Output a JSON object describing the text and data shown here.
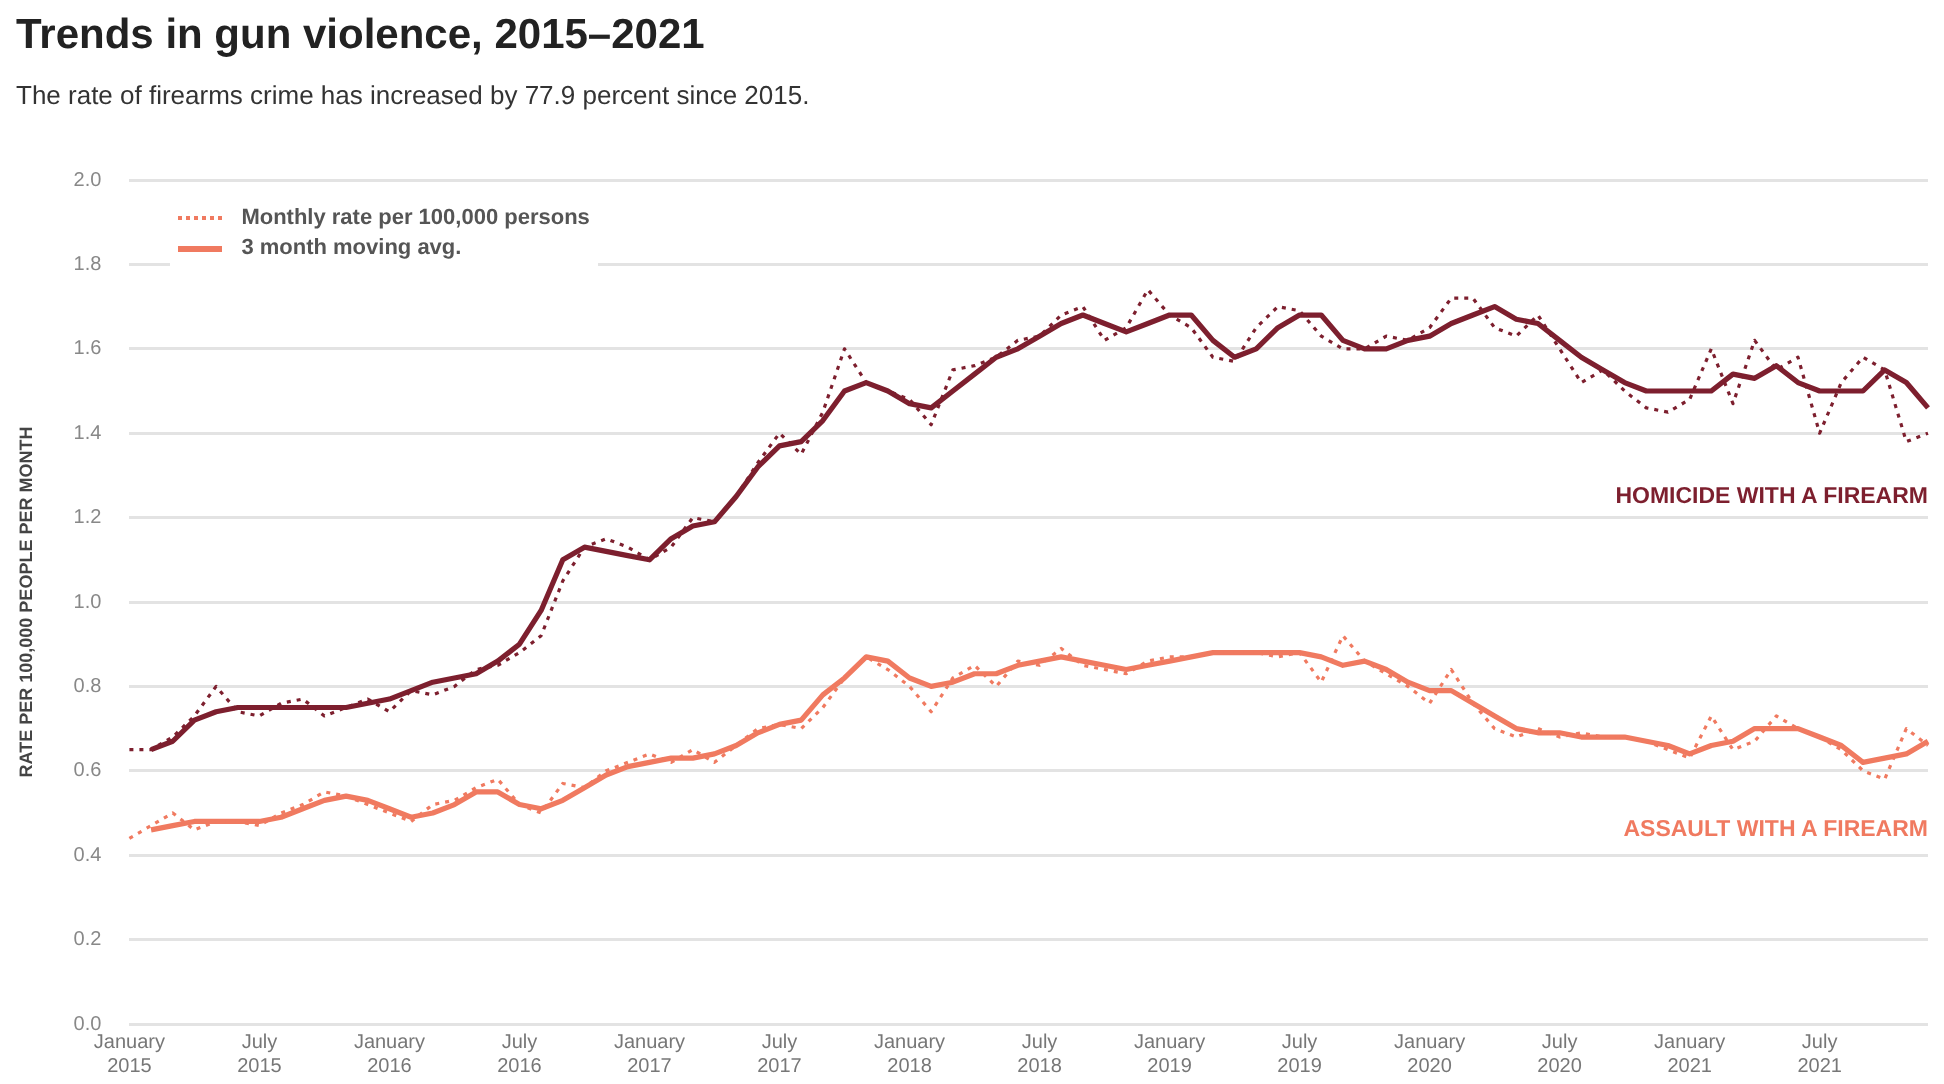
{
  "chart_data": {
    "type": "line",
    "title": "Trends in gun violence, 2015–2021",
    "subtitle": "The rate of firearms crime has increased by 77.9 percent since 2015.",
    "ylabel": "RATE PER 100,000 PEOPLE PER MONTH",
    "categories": [
      "January 2015",
      null,
      null,
      null,
      null,
      null,
      "July 2015",
      null,
      null,
      null,
      null,
      null,
      "January 2016",
      null,
      null,
      null,
      null,
      null,
      "July 2016",
      null,
      null,
      null,
      null,
      null,
      "January 2017",
      null,
      null,
      null,
      null,
      null,
      "July 2017",
      null,
      null,
      null,
      null,
      null,
      "January 2018",
      null,
      null,
      null,
      null,
      null,
      "July 2018",
      null,
      null,
      null,
      null,
      null,
      "January 2019",
      null,
      null,
      null,
      null,
      null,
      "July 2019",
      null,
      null,
      null,
      null,
      null,
      "January 2020",
      null,
      null,
      null,
      null,
      null,
      "July 2020",
      null,
      null,
      null,
      null,
      null,
      "January 2021",
      null,
      null,
      null,
      null,
      null,
      "July 2021",
      null,
      null,
      null,
      null,
      null
    ],
    "series": [
      {
        "color": "#7d1f2e",
        "line_style": "dotted",
        "values": [
          0.65,
          0.65,
          0.68,
          0.73,
          0.8,
          0.74,
          0.73,
          0.76,
          0.77,
          0.73,
          0.75,
          0.77,
          0.74,
          0.79,
          0.78,
          0.8,
          0.84,
          0.85,
          0.88,
          0.92,
          1.05,
          1.13,
          1.15,
          1.13,
          1.1,
          1.13,
          1.2,
          1.19,
          1.25,
          1.33,
          1.4,
          1.35,
          1.45,
          1.6,
          1.52,
          1.5,
          1.48,
          1.42,
          1.55,
          1.56,
          1.58,
          1.62,
          1.63,
          1.68,
          1.7,
          1.62,
          1.65,
          1.74,
          1.68,
          1.65,
          1.58,
          1.57,
          1.65,
          1.7,
          1.69,
          1.63,
          1.6,
          1.6,
          1.63,
          1.62,
          1.65,
          1.72,
          1.72,
          1.65,
          1.63,
          1.68,
          1.6,
          1.52,
          1.55,
          1.5,
          1.46,
          1.45,
          1.48,
          1.6,
          1.47,
          1.62,
          1.55,
          1.58,
          1.4,
          1.52,
          1.58,
          1.55,
          1.38,
          1.4
        ]
      },
      {
        "color": "#7d1f2e",
        "line_style": "solid",
        "values": [
          null,
          0.65,
          0.67,
          0.72,
          0.74,
          0.75,
          0.75,
          0.75,
          0.75,
          0.75,
          0.75,
          0.76,
          0.77,
          0.79,
          0.81,
          0.82,
          0.83,
          0.86,
          0.9,
          0.98,
          1.1,
          1.13,
          1.12,
          1.11,
          1.1,
          1.15,
          1.18,
          1.19,
          1.25,
          1.32,
          1.37,
          1.38,
          1.43,
          1.5,
          1.52,
          1.5,
          1.47,
          1.46,
          1.5,
          1.54,
          1.58,
          1.6,
          1.63,
          1.66,
          1.68,
          1.66,
          1.64,
          1.66,
          1.68,
          1.68,
          1.62,
          1.58,
          1.6,
          1.65,
          1.68,
          1.68,
          1.62,
          1.6,
          1.6,
          1.62,
          1.63,
          1.66,
          1.68,
          1.7,
          1.67,
          1.66,
          1.62,
          1.58,
          1.55,
          1.52,
          1.5,
          1.5,
          1.5,
          1.5,
          1.54,
          1.53,
          1.56,
          1.52,
          1.5,
          1.5,
          1.5,
          1.55,
          1.52,
          1.46
        ]
      },
      {
        "name": "Monthly rate per 100,000 persons",
        "color": "#f07a60",
        "line_style": "dotted",
        "values": [
          0.44,
          0.47,
          0.5,
          0.46,
          0.48,
          0.48,
          0.47,
          0.5,
          0.52,
          0.55,
          0.54,
          0.52,
          0.5,
          0.48,
          0.52,
          0.53,
          0.56,
          0.58,
          0.52,
          0.5,
          0.57,
          0.56,
          0.6,
          0.62,
          0.64,
          0.62,
          0.65,
          0.62,
          0.66,
          0.7,
          0.71,
          0.7,
          0.75,
          0.82,
          0.87,
          0.84,
          0.8,
          0.74,
          0.82,
          0.85,
          0.8,
          0.86,
          0.85,
          0.89,
          0.85,
          0.84,
          0.83,
          0.86,
          0.87,
          0.87,
          0.88,
          0.88,
          0.88,
          0.87,
          0.88,
          0.81,
          0.92,
          0.86,
          0.83,
          0.8,
          0.76,
          0.84,
          0.76,
          0.7,
          0.68,
          0.7,
          0.68,
          0.69,
          0.68,
          0.68,
          0.67,
          0.65,
          0.63,
          0.73,
          0.65,
          0.67,
          0.73,
          0.7,
          0.68,
          0.65,
          0.6,
          0.58,
          0.7,
          0.66
        ]
      },
      {
        "name": "3 month moving avg.",
        "color": "#f07a60",
        "line_style": "solid",
        "values": [
          null,
          0.46,
          0.47,
          0.48,
          0.48,
          0.48,
          0.48,
          0.49,
          0.51,
          0.53,
          0.54,
          0.53,
          0.51,
          0.49,
          0.5,
          0.52,
          0.55,
          0.55,
          0.52,
          0.51,
          0.53,
          0.56,
          0.59,
          0.61,
          0.62,
          0.63,
          0.63,
          0.64,
          0.66,
          0.69,
          0.71,
          0.72,
          0.78,
          0.82,
          0.87,
          0.86,
          0.82,
          0.8,
          0.81,
          0.83,
          0.83,
          0.85,
          0.86,
          0.87,
          0.86,
          0.85,
          0.84,
          0.85,
          0.86,
          0.87,
          0.88,
          0.88,
          0.88,
          0.88,
          0.88,
          0.87,
          0.85,
          0.86,
          0.84,
          0.81,
          0.79,
          0.79,
          0.76,
          0.73,
          0.7,
          0.69,
          0.69,
          0.68,
          0.68,
          0.68,
          0.67,
          0.66,
          0.64,
          0.66,
          0.67,
          0.7,
          0.7,
          0.7,
          0.68,
          0.66,
          0.62,
          0.63,
          0.64,
          0.67
        ]
      }
    ],
    "annotations": [
      "HOMICIDE WITH A FIREARM",
      "ASSAULT WITH A FIREARM"
    ],
    "ylim": [
      0,
      2
    ],
    "yticks": [
      {
        "value": 0,
        "label": "0.0"
      },
      0.2,
      0.4,
      0.6,
      0.8,
      {
        "value": 1,
        "label": "1.0"
      },
      1.2,
      1.4,
      1.6,
      1.8,
      {
        "value": 2,
        "label": "2.0"
      }
    ],
    "grid": "y",
    "legend": "top left",
    "marker": "none"
  }
}
